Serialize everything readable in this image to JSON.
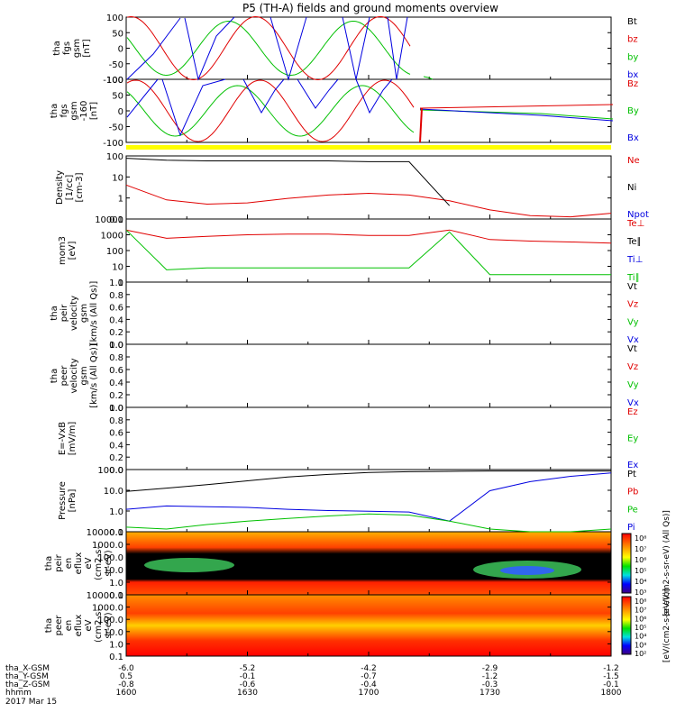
{
  "title": "P5 (TH-A) fields and ground moments overview",
  "colors": {
    "black": "#000000",
    "red": "#e00000",
    "green": "#00c000",
    "blue": "#0000e0",
    "yellow": "#ffff00"
  },
  "panels": [
    {
      "id": "fgs_gsm",
      "ylabel": [
        "tha",
        "fgs",
        "gsm",
        "[nT]"
      ],
      "ticks": [
        "100",
        "50",
        "0",
        "-50",
        "-100"
      ],
      "legend": [
        {
          "text": "Bt",
          "color": "black"
        },
        {
          "text": "bz",
          "color": "red"
        },
        {
          "text": "by",
          "color": "green"
        },
        {
          "text": "bx",
          "color": "blue"
        }
      ]
    },
    {
      "id": "fgs_gsm_despun",
      "ylabel": [
        "tha",
        "fgs",
        "gsm",
        "-160",
        "[nT]"
      ],
      "ticks": [
        "100",
        "50",
        "0",
        "-50",
        "-100"
      ],
      "legend": [
        {
          "text": "Bz",
          "color": "red"
        },
        {
          "text": "By",
          "color": "green"
        },
        {
          "text": "Bx",
          "color": "blue"
        }
      ]
    },
    {
      "id": "density",
      "ylabel": [
        "Density",
        "[1/cc]",
        "[cm-3]"
      ],
      "ticks": [
        "100",
        "10",
        "1",
        "0.1"
      ],
      "legend": [
        {
          "text": "Ne",
          "color": "red"
        },
        {
          "text": "Ni",
          "color": "black"
        },
        {
          "text": "Npot",
          "color": "blue"
        }
      ]
    },
    {
      "id": "temperature",
      "ylabel": [
        "mom3",
        "[eV]"
      ],
      "ticks": [
        "10000",
        "1000",
        "100",
        "10",
        "1"
      ],
      "legend": [
        {
          "text": "Te⊥",
          "color": "red"
        },
        {
          "text": "Te∥",
          "color": "black"
        },
        {
          "text": "Ti⊥",
          "color": "blue"
        },
        {
          "text": "Ti∥",
          "color": "green"
        }
      ]
    },
    {
      "id": "peir_velocity",
      "ylabel": [
        "tha",
        "peir",
        "velocity",
        "gsm",
        "[km/s (All Qs)]"
      ],
      "ticks": [
        "1.0",
        "0.8",
        "0.6",
        "0.4",
        "0.2",
        "0.0"
      ],
      "legend": [
        {
          "text": "Vt",
          "color": "black"
        },
        {
          "text": "Vz",
          "color": "red"
        },
        {
          "text": "Vy",
          "color": "green"
        },
        {
          "text": "Vx",
          "color": "blue"
        }
      ]
    },
    {
      "id": "peer_velocity",
      "ylabel": [
        "tha",
        "peer",
        "velocity",
        "gsm",
        "[km/s (All Qs)]"
      ],
      "ticks": [
        "1.0",
        "0.8",
        "0.6",
        "0.4",
        "0.2",
        "0.0"
      ],
      "legend": [
        {
          "text": "Vt",
          "color": "black"
        },
        {
          "text": "Vz",
          "color": "red"
        },
        {
          "text": "Vy",
          "color": "green"
        },
        {
          "text": "Vx",
          "color": "blue"
        }
      ]
    },
    {
      "id": "efield",
      "ylabel": [
        "E=-VxB",
        "[mV/m]"
      ],
      "ticks": [
        "1.0",
        "0.8",
        "0.6",
        "0.4",
        "0.2",
        "0.0"
      ],
      "legend": [
        {
          "text": "Ez",
          "color": "red"
        },
        {
          "text": "Ey",
          "color": "green"
        },
        {
          "text": "Ex",
          "color": "blue"
        }
      ]
    },
    {
      "id": "pressure",
      "ylabel": [
        "Pressure",
        "[nPa]"
      ],
      "ticks": [
        "100.0",
        "10.0",
        "1.0",
        "0.1"
      ],
      "legend": [
        {
          "text": "Pt",
          "color": "black"
        },
        {
          "text": "Pb",
          "color": "red"
        },
        {
          "text": "Pe",
          "color": "green"
        },
        {
          "text": "Pi",
          "color": "blue"
        }
      ]
    },
    {
      "id": "peir_spec",
      "ylabel": [
        "tha",
        "peir",
        "en",
        "eflux",
        "eV",
        "(cm2-s-",
        "sr-eV)"
      ],
      "ticks": [
        "10000.0",
        "1000.0",
        "100.0",
        "10.0",
        "1.0",
        "0.1"
      ],
      "legend": []
    },
    {
      "id": "peer_spec",
      "ylabel": [
        "tha",
        "peer",
        "en",
        "eflux",
        "eV",
        "(cm2-s-",
        "sr-eV)"
      ],
      "ticks": [
        "10000.0",
        "1000.0",
        "100.0",
        "10.0",
        "1.0",
        "0.1"
      ],
      "legend": []
    }
  ],
  "colorbars": [
    {
      "ticks": [
        "10⁸",
        "10⁷",
        "10⁶",
        "10⁵",
        "10⁴",
        "10³"
      ],
      "label": "[eV/(cm2-s-sr-eV) (All Qs)]"
    },
    {
      "ticks": [
        "10⁸",
        "10⁷",
        "10⁶",
        "10⁵",
        "10⁴",
        "10³",
        "10²"
      ],
      "label": "[eV/(cm2-s-sr-eV)]"
    }
  ],
  "footer": {
    "rows": [
      {
        "label": "tha_X-GSM",
        "values": [
          "-6.0",
          "-5.2",
          "-4.2",
          "-2.9",
          "-1.2"
        ]
      },
      {
        "label": "tha_Y-GSM",
        "values": [
          "0.5",
          "-0.1",
          "-0.7",
          "-1.2",
          "-1.5"
        ]
      },
      {
        "label": "tha_Z-GSM",
        "values": [
          "-0.8",
          "-0.6",
          "-0.4",
          "-0.3",
          "-0.1"
        ]
      },
      {
        "label": "hhmm",
        "values": [
          "1600",
          "1630",
          "1700",
          "1730",
          "1800"
        ]
      }
    ],
    "date": "2017 Mar 15"
  },
  "chart_data": {
    "type": "line",
    "title": "P5 (TH-A) fields and ground moments overview",
    "x_label": "hhmm",
    "x_ticks": [
      "1600",
      "1630",
      "1700",
      "1730",
      "1800"
    ],
    "x": [
      1600,
      1610,
      1620,
      1630,
      1640,
      1650,
      1700,
      1710,
      1720,
      1730,
      1740,
      1750,
      1800
    ],
    "series": [
      {
        "name": "Ne",
        "panel": "density",
        "values": [
          6,
          1,
          0.6,
          0.7,
          1.2,
          1.8,
          2.2,
          1.8,
          0.9,
          0.3,
          0.15,
          0.13,
          0.2
        ]
      },
      {
        "name": "Ni",
        "panel": "density",
        "values": [
          150,
          120,
          110,
          110,
          110,
          110,
          100,
          100,
          0.5,
          null,
          null,
          null,
          null
        ]
      },
      {
        "name": "Te⊥",
        "panel": "temperature",
        "values": [
          2000,
          600,
          800,
          1000,
          1100,
          1100,
          900,
          900,
          2000,
          500,
          400,
          350,
          300
        ]
      },
      {
        "name": "Ti∥",
        "panel": "temperature",
        "values": [
          2000,
          6,
          8,
          8,
          8,
          8,
          8,
          8,
          1500,
          3,
          3,
          3,
          3
        ]
      },
      {
        "name": "Pt",
        "panel": "pressure",
        "values": [
          9,
          15,
          25,
          45,
          80,
          120,
          160,
          180,
          190,
          200,
          200,
          200,
          200
        ]
      },
      {
        "name": "Pi",
        "panel": "pressure",
        "values": [
          0.6,
          1,
          0.9,
          0.8,
          0.6,
          0.5,
          0.45,
          0.4,
          0.1,
          10,
          40,
          90,
          150
        ]
      },
      {
        "name": "Pe",
        "panel": "pressure",
        "values": [
          0.04,
          0.03,
          0.06,
          0.1,
          0.15,
          0.22,
          0.3,
          0.25,
          0.1,
          0.03,
          0.02,
          0.02,
          0.03
        ]
      }
    ]
  }
}
